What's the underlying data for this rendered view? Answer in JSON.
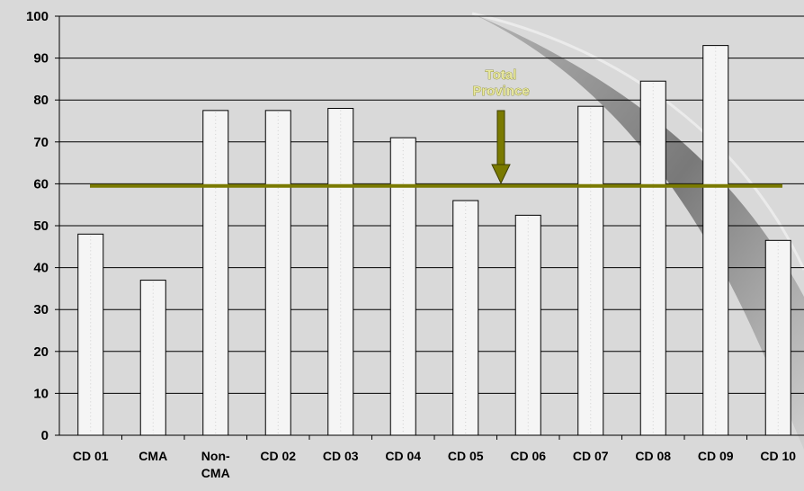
{
  "chart_data": {
    "type": "bar",
    "categories": [
      [
        "CD 01"
      ],
      [
        "CMA"
      ],
      [
        "Non-",
        "CMA"
      ],
      [
        "CD 02"
      ],
      [
        "CD 03"
      ],
      [
        "CD 04"
      ],
      [
        "CD 05"
      ],
      [
        "CD 06"
      ],
      [
        "CD 07"
      ],
      [
        "CD 08"
      ],
      [
        "CD 09"
      ],
      [
        "CD 10"
      ]
    ],
    "values": [
      48,
      37,
      77.5,
      77.5,
      78,
      71,
      56,
      52.5,
      78.5,
      84.5,
      93,
      46.5
    ],
    "ylim": [
      0,
      100
    ],
    "yticks": [
      "0",
      "10",
      "20",
      "30",
      "40",
      "50",
      "60",
      "70",
      "80",
      "90",
      "100"
    ],
    "grid": true,
    "legend": "none",
    "reference_line": {
      "value": 59.5,
      "label": [
        "Total",
        "Province"
      ],
      "color": "#7a7a00"
    },
    "colors": {
      "background": "#d9d9d9",
      "bar_fill": "#f5f5f5",
      "bar_stroke": "#000000",
      "grid": "#000000",
      "swoosh": "#8a8a8a",
      "reference": "#7a7a00"
    }
  }
}
